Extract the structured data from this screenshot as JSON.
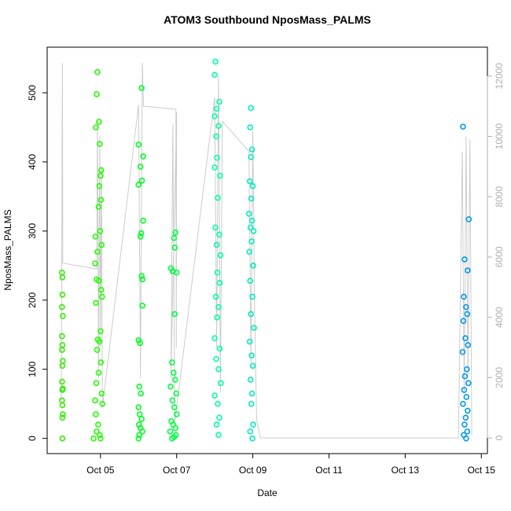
{
  "chart_data": {
    "type": "scatter",
    "title": "ATOM3 Southbound NposMass_PALMS",
    "x_label": "Date",
    "y_label": "NposMass_PALMS",
    "xlim": [
      3.6,
      15.16
    ],
    "xticks": [
      {
        "value": 5,
        "label": "Oct 05"
      },
      {
        "value": 7,
        "label": "Oct 07"
      },
      {
        "value": 9,
        "label": "Oct 09"
      },
      {
        "value": 11,
        "label": "Oct 11"
      },
      {
        "value": 13,
        "label": "Oct 13"
      },
      {
        "value": 15,
        "label": "Oct 15"
      }
    ],
    "ylim": [
      -22,
      566
    ],
    "yticks": [
      0,
      100,
      200,
      300,
      400,
      500
    ],
    "y2lim": [
      -520,
      12960
    ],
    "y2ticks": [
      0,
      2000,
      4000,
      6000,
      8000,
      10000,
      12000
    ],
    "series": [
      {
        "color": "#33ee00",
        "x": [
          3.99,
          4.0,
          4.0,
          3.99,
          4.01,
          3.99,
          4.0,
          3.99,
          4.01,
          4.0,
          3.99,
          4.01,
          4.0,
          3.99,
          4.0,
          4.01,
          4.0,
          4.0
        ],
        "values": [
          240,
          233,
          208,
          190,
          177,
          148,
          135,
          128,
          112,
          105,
          82,
          72,
          70,
          55,
          48,
          35,
          30,
          0
        ]
      },
      {
        "color": "#22ff00",
        "x": [
          4.92,
          4.9,
          4.96,
          4.88,
          4.98,
          5.02,
          5.0,
          4.97,
          5.01,
          4.95,
          4.99,
          4.87,
          5.03,
          4.92,
          4.86,
          4.9,
          4.96,
          5.02,
          5.04,
          4.88,
          5.0,
          4.93,
          4.97,
          4.91,
          5.01,
          4.95,
          4.89,
          5.03,
          4.86,
          5.05,
          4.88,
          4.94,
          4.9,
          4.98,
          4.82,
          5.0
        ],
        "values": [
          530,
          498,
          458,
          450,
          426,
          388,
          380,
          365,
          345,
          335,
          300,
          292,
          280,
          270,
          253,
          230,
          228,
          215,
          205,
          196,
          155,
          143,
          140,
          128,
          110,
          95,
          80,
          65,
          55,
          50,
          35,
          20,
          10,
          5,
          0,
          0
        ]
      },
      {
        "color": "#00ff22",
        "x": [
          6.08,
          6.0,
          6.12,
          6.05,
          6.09,
          6.0,
          6.12,
          6.07,
          6.05,
          6.08,
          6.1,
          6.1,
          6.0,
          6.04,
          6.02,
          6.06,
          6.0,
          6.03,
          6.08,
          6.01,
          6.05,
          6.1,
          6.02,
          6.0
        ],
        "values": [
          507,
          425,
          408,
          393,
          373,
          367,
          315,
          297,
          292,
          235,
          230,
          192,
          142,
          138,
          75,
          65,
          45,
          35,
          28,
          20,
          15,
          10,
          5,
          0
        ]
      },
      {
        "color": "#00ff44",
        "x": [
          6.97,
          6.93,
          6.95,
          6.85,
          6.9,
          7.0,
          6.95,
          6.88,
          6.92,
          6.96,
          6.84,
          6.99,
          6.89,
          6.94,
          7.0,
          6.86,
          6.91,
          6.97,
          6.83,
          6.98,
          6.93,
          6.88
        ],
        "values": [
          298,
          290,
          276,
          246,
          242,
          240,
          180,
          110,
          95,
          85,
          75,
          65,
          55,
          45,
          35,
          25,
          20,
          15,
          10,
          5,
          2,
          0
        ]
      },
      {
        "color": "#00ffaa",
        "x": [
          8.02,
          8.0,
          8.12,
          8.05,
          8.0,
          8.1,
          8.04,
          8.06,
          8.0,
          8.14,
          8.08,
          8.02,
          8.12,
          8.05,
          8.15,
          8.07,
          8.13,
          8.03,
          8.1,
          8.06,
          8.0,
          8.13,
          8.04,
          8.1,
          8.16,
          8.0,
          8.08,
          8.12,
          8.05,
          8.1
        ],
        "values": [
          545,
          526,
          487,
          477,
          466,
          452,
          437,
          406,
          392,
          380,
          348,
          305,
          295,
          280,
          265,
          240,
          225,
          205,
          190,
          175,
          145,
          130,
          115,
          100,
          80,
          62,
          50,
          30,
          20,
          5
        ]
      },
      {
        "color": "#00eebb",
        "x": [
          8.95,
          8.93,
          8.98,
          8.95,
          8.92,
          9.0,
          8.96,
          8.9,
          8.98,
          8.94,
          9.02,
          8.97,
          8.91,
          9.01,
          8.93,
          8.99,
          8.95,
          9.03,
          8.92,
          8.97,
          9.0,
          8.94,
          8.98,
          8.96,
          9.01,
          8.93,
          8.99
        ],
        "values": [
          478,
          450,
          418,
          407,
          372,
          365,
          347,
          325,
          315,
          305,
          300,
          285,
          270,
          250,
          228,
          205,
          180,
          160,
          140,
          120,
          105,
          85,
          65,
          50,
          20,
          10,
          0
        ]
      },
      {
        "color": "#0099ee",
        "x": [
          14.52,
          14.67,
          14.56,
          14.64,
          14.54,
          14.6,
          14.63,
          14.53,
          14.58,
          14.65,
          14.51,
          14.62,
          14.57,
          14.66,
          14.55,
          14.61,
          14.52,
          14.64,
          14.59,
          14.56,
          14.63,
          14.54,
          14.6
        ],
        "values": [
          451,
          317,
          259,
          243,
          205,
          190,
          180,
          170,
          145,
          135,
          125,
          100,
          90,
          80,
          70,
          60,
          50,
          40,
          30,
          20,
          10,
          5,
          0
        ]
      },
      {
        "type": "line",
        "axis": "y2",
        "color": "#cccccc",
        "x": [
          3.97,
          4.0,
          4.01,
          4.9,
          4.92,
          4.95,
          4.98,
          5.0,
          5.03,
          5.05,
          6.0,
          6.05,
          6.1,
          6.13,
          6.98,
          6.99,
          7.0,
          6.85,
          6.9,
          6.95,
          8.0,
          8.05,
          8.1,
          8.15,
          8.2,
          8.9,
          8.95,
          9.0,
          9.05,
          9.1,
          9.2,
          14.4,
          14.5,
          14.55,
          14.6,
          14.65,
          14.7,
          14.75
        ],
        "values": [
          1250,
          12440,
          5800,
          5600,
          10600,
          2000,
          10000,
          3000,
          9000,
          1000,
          11050,
          2000,
          12450,
          11000,
          10900,
          3000,
          10800,
          2000,
          10400,
          500,
          11300,
          3000,
          12000,
          1500,
          10500,
          9500,
          2500,
          10200,
          4000,
          600,
          0,
          0,
          9500,
          1500,
          10000,
          2000,
          9900,
          100
        ]
      }
    ]
  }
}
